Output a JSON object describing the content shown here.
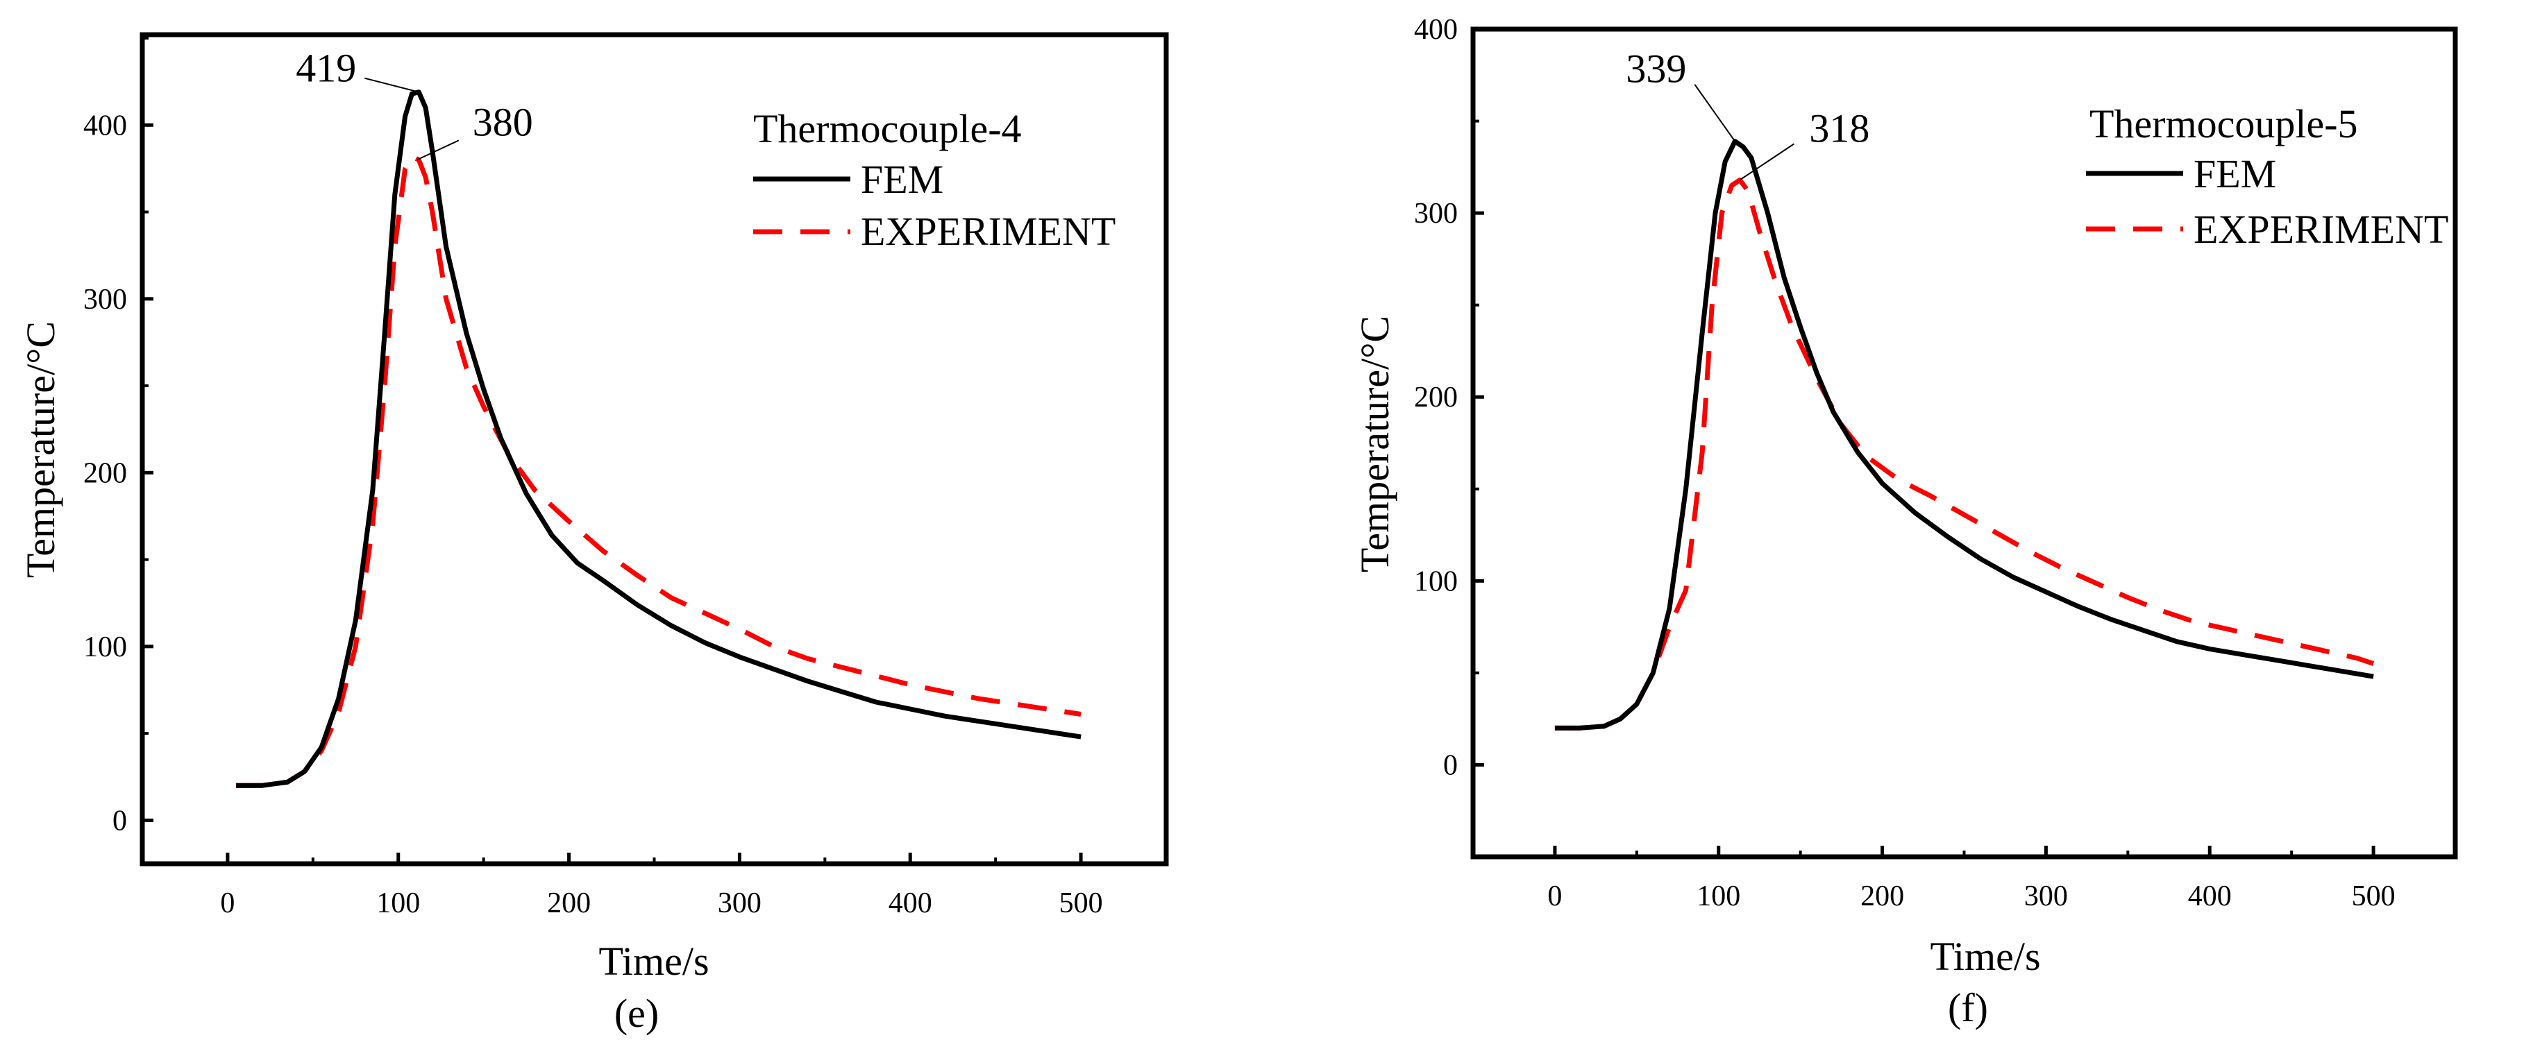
{
  "chart_data": [
    {
      "type": "line",
      "panel_label": "(e)",
      "legend_title": "Thermocouple-4",
      "xlabel": "Time/s",
      "ylabel": "Temperature/°C",
      "xlim": [
        -50,
        550
      ],
      "ylim": [
        -25,
        452
      ],
      "xticks": [
        0,
        100,
        200,
        300,
        400,
        500
      ],
      "yticks": [
        0,
        100,
        200,
        300,
        400
      ],
      "legend_position": "top-right",
      "colors": {
        "FEM": "#000000",
        "EXPERIMENT": "#ff0000"
      },
      "series": [
        {
          "name": "FEM",
          "style": "solid",
          "x": [
            5,
            20,
            35,
            45,
            55,
            65,
            75,
            85,
            92,
            98,
            104,
            108,
            112,
            116,
            120,
            128,
            140,
            150,
            160,
            175,
            190,
            205,
            220,
            240,
            260,
            280,
            300,
            320,
            340,
            360,
            380,
            400,
            420,
            440,
            460,
            480,
            500
          ],
          "y": [
            20,
            20,
            22,
            28,
            42,
            70,
            115,
            190,
            280,
            360,
            405,
            418,
            419,
            410,
            385,
            330,
            280,
            248,
            220,
            188,
            164,
            148,
            138,
            124,
            112,
            102,
            94,
            87,
            80,
            74,
            68,
            64,
            60,
            57,
            54,
            51,
            48
          ]
        },
        {
          "name": "EXPERIMENT",
          "style": "dashed",
          "x": [
            5,
            20,
            35,
            45,
            55,
            65,
            75,
            85,
            92,
            98,
            104,
            108,
            112,
            116,
            120,
            128,
            140,
            150,
            165,
            180,
            200,
            220,
            240,
            260,
            280,
            300,
            320,
            340,
            360,
            380,
            400,
            420,
            440,
            460,
            480,
            500
          ],
          "y": [
            20,
            20,
            22,
            28,
            40,
            62,
            100,
            170,
            250,
            330,
            375,
            382,
            380,
            370,
            350,
            300,
            260,
            238,
            210,
            190,
            172,
            155,
            141,
            128,
            119,
            110,
            100,
            93,
            88,
            83,
            78,
            74,
            70,
            67,
            64,
            61
          ]
        }
      ],
      "annotations": [
        {
          "text": "419",
          "x": 112,
          "y": 419
        },
        {
          "text": "380",
          "x": 111,
          "y": 380
        }
      ]
    },
    {
      "type": "line",
      "panel_label": "(f)",
      "legend_title": "Thermocouple-5",
      "xlabel": "Time/s",
      "ylabel": "Temperature/°C",
      "xlim": [
        -50,
        550
      ],
      "ylim": [
        -50,
        400
      ],
      "xticks": [
        0,
        100,
        200,
        300,
        400,
        500
      ],
      "yticks": [
        0,
        100,
        200,
        300,
        400
      ],
      "legend_position": "top-right",
      "colors": {
        "FEM": "#000000",
        "EXPERIMENT": "#ff0000"
      },
      "series": [
        {
          "name": "FEM",
          "style": "solid",
          "x": [
            0,
            15,
            30,
            40,
            50,
            60,
            70,
            80,
            90,
            98,
            104,
            110,
            115,
            120,
            130,
            140,
            150,
            160,
            170,
            185,
            200,
            220,
            240,
            260,
            280,
            300,
            320,
            340,
            360,
            380,
            400,
            420,
            440,
            460,
            480,
            500
          ],
          "y": [
            20,
            20,
            21,
            25,
            33,
            50,
            85,
            150,
            235,
            300,
            328,
            339,
            336,
            330,
            300,
            265,
            238,
            213,
            192,
            170,
            153,
            137,
            124,
            112,
            102,
            94,
            86,
            79,
            73,
            67,
            63,
            60,
            57,
            54,
            51,
            48
          ]
        },
        {
          "name": "EXPERIMENT",
          "style": "dashed",
          "x": [
            0,
            15,
            30,
            40,
            50,
            60,
            70,
            80,
            90,
            96,
            102,
            108,
            113,
            118,
            125,
            135,
            145,
            160,
            175,
            190,
            210,
            230,
            250,
            270,
            290,
            310,
            330,
            350,
            370,
            390,
            410,
            430,
            450,
            470,
            490,
            500
          ],
          "y": [
            20,
            20,
            21,
            25,
            33,
            50,
            75,
            95,
            170,
            250,
            300,
            315,
            318,
            312,
            290,
            262,
            238,
            210,
            185,
            168,
            155,
            146,
            136,
            126,
            116,
            107,
            99,
            91,
            84,
            78,
            74,
            70,
            66,
            62,
            58,
            55
          ]
        }
      ],
      "annotations": [
        {
          "text": "339",
          "x": 110,
          "y": 339
        },
        {
          "text": "318",
          "x": 113,
          "y": 318
        }
      ]
    }
  ]
}
